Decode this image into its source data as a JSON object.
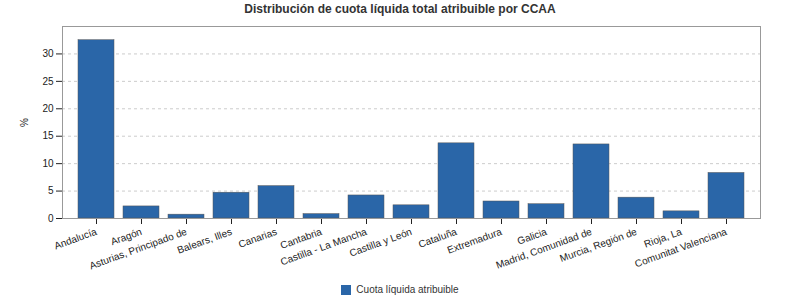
{
  "chart_data": {
    "type": "bar",
    "title": "Distribución de cuota líquida total atribuible por CCAA",
    "y_label": "%",
    "categories": [
      "Andalucía",
      "Aragón",
      "Asturias, Principado de",
      "Balears, Illes",
      "Canarias",
      "Cantabria",
      "Castilla - La Mancha",
      "Castilla y León",
      "Cataluña",
      "Extremadura",
      "Galicia",
      "Madrid, Comunidad de",
      "Murcia, Región de",
      "Rioja, La",
      "Comunitat Valenciana"
    ],
    "series": [
      {
        "name": "Cuota líquida atribuible",
        "color": "#2a66a8",
        "values": [
          32.5,
          2.2,
          0.7,
          4.7,
          5.9,
          0.8,
          4.2,
          2.4,
          13.7,
          3.1,
          2.6,
          13.5,
          3.8,
          1.3,
          8.3
        ]
      }
    ],
    "ylim": [
      0,
      35
    ],
    "yticks": [
      0,
      5,
      10,
      15,
      20,
      25,
      30
    ],
    "grid": true,
    "legend": "bottom"
  }
}
